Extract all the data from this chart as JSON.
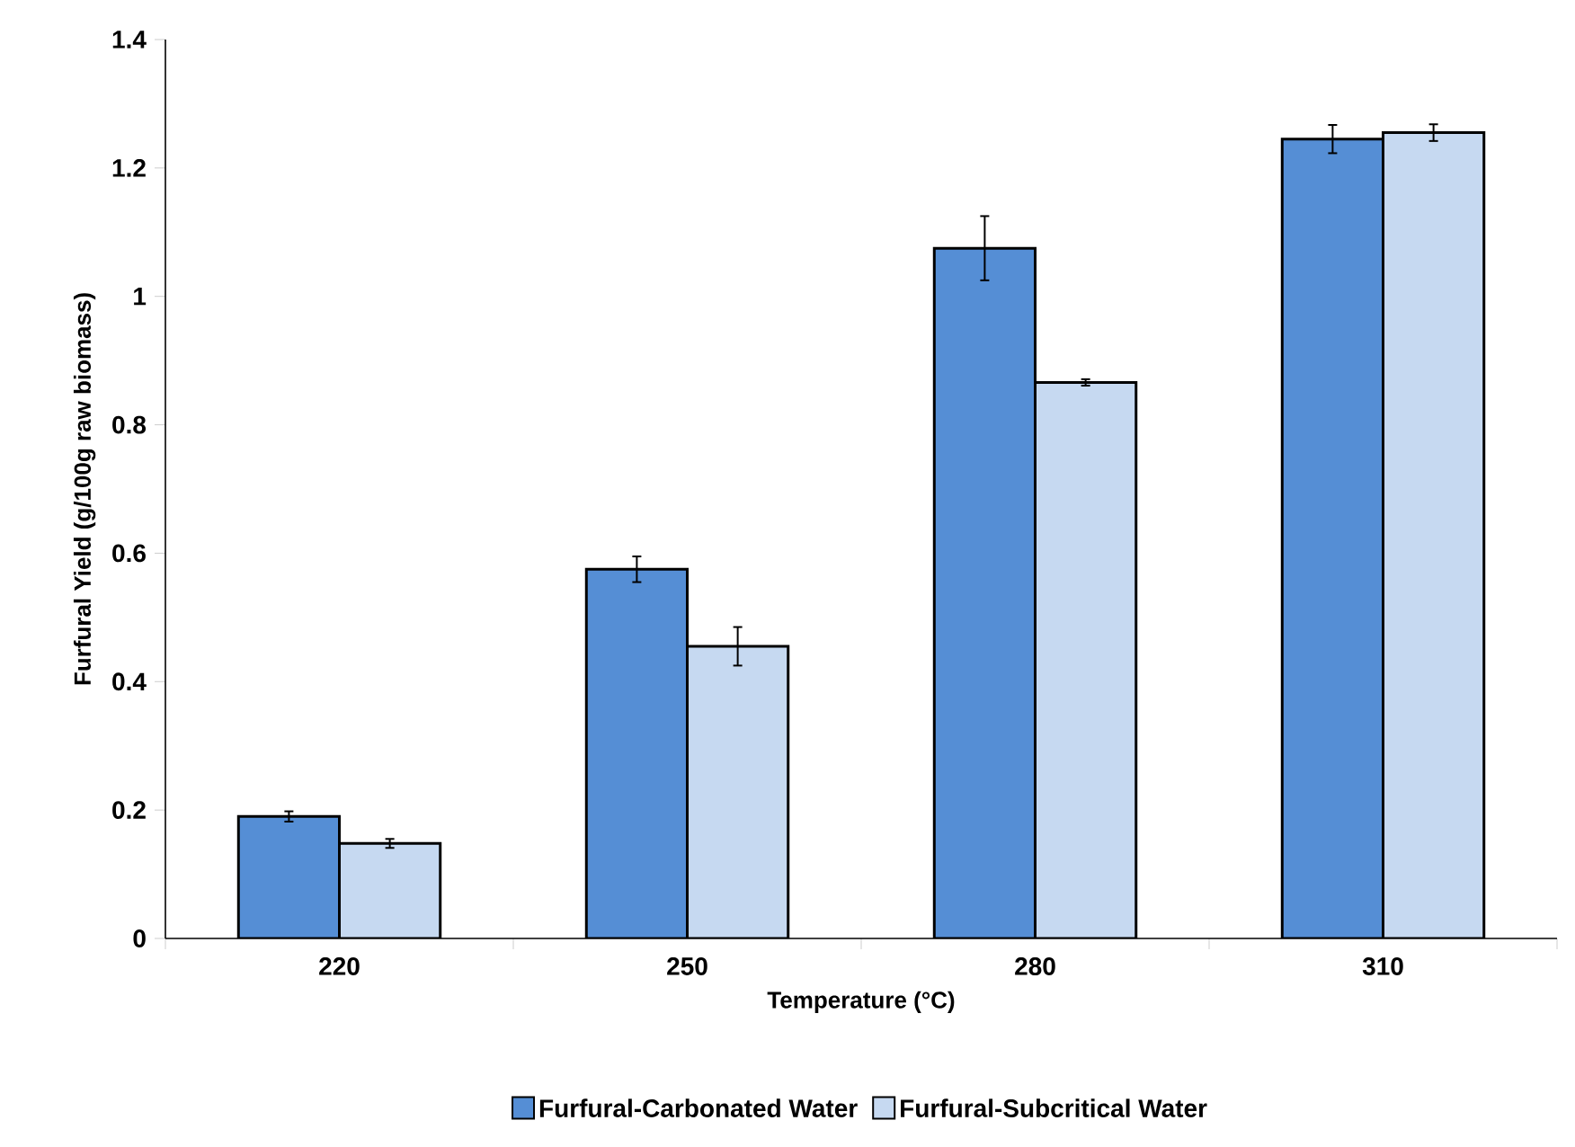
{
  "chart_data": {
    "type": "bar",
    "xlabel": "Temperature (°C)",
    "ylabel": "Furfural Yield (g/100g raw biomass)",
    "categories": [
      "220",
      "250",
      "280",
      "310"
    ],
    "series": [
      {
        "name": "Furfural-Carbonated Water",
        "color": "#558ed5",
        "values": [
          0.19,
          0.575,
          1.075,
          1.245
        ],
        "errors": [
          0.008,
          0.02,
          0.05,
          0.022
        ]
      },
      {
        "name": "Furfural-Subcritical Water",
        "color": "#c6d9f1",
        "values": [
          0.148,
          0.455,
          0.866,
          1.255
        ],
        "errors": [
          0.007,
          0.03,
          0.005,
          0.013
        ]
      }
    ],
    "ylim": [
      0,
      1.4
    ],
    "yticks": [
      0,
      0.2,
      0.4,
      0.6,
      0.8,
      1,
      1.2,
      1.4
    ],
    "grid": false,
    "legend": "bottom"
  }
}
